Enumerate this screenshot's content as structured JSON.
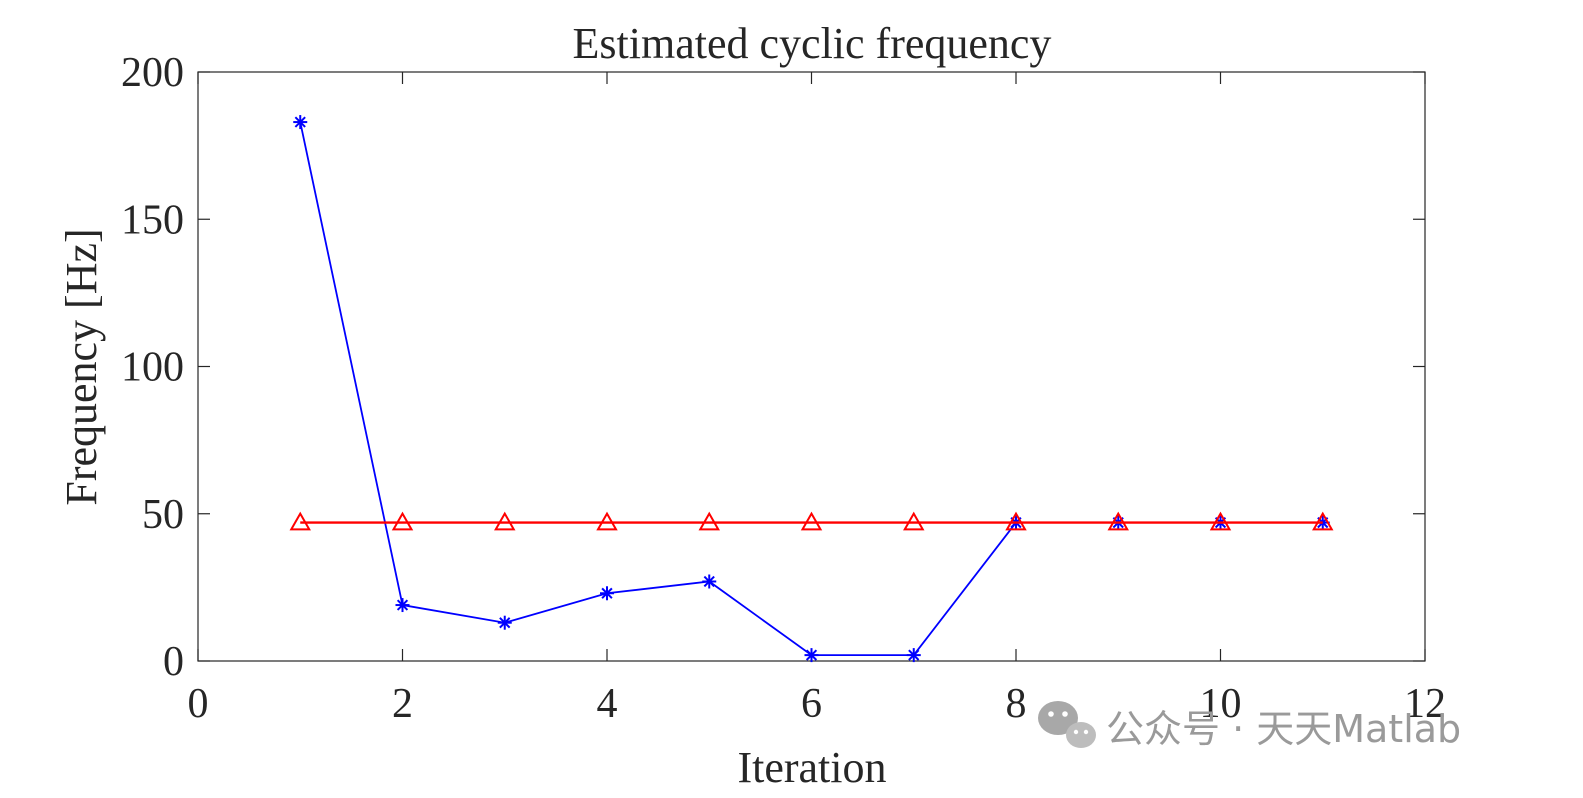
{
  "chart_data": {
    "type": "line",
    "title": "Estimated cyclic frequency",
    "xlabel": "Iteration",
    "ylabel": "Frequency [Hz]",
    "xlim": [
      0,
      12
    ],
    "ylim": [
      0,
      200
    ],
    "xticks": [
      0,
      2,
      4,
      6,
      8,
      10,
      12
    ],
    "yticks": [
      0,
      50,
      100,
      150,
      200
    ],
    "grid": false,
    "legend": "none",
    "series": [
      {
        "marker": "asterisk",
        "color": "#0000ff",
        "x": [
          1,
          2,
          3,
          4,
          5,
          6,
          7,
          8,
          9,
          10,
          11
        ],
        "values": [
          183,
          19,
          13,
          23,
          27,
          2,
          2,
          47,
          47,
          47,
          47
        ]
      },
      {
        "marker": "triangle",
        "color": "#ff0000",
        "x": [
          1,
          2,
          3,
          4,
          5,
          6,
          7,
          8,
          9,
          10,
          11
        ],
        "values": [
          47,
          47,
          47,
          47,
          47,
          47,
          47,
          47,
          47,
          47,
          47
        ]
      }
    ]
  },
  "watermark": {
    "text": "公众号 · 天天Matlab",
    "icon": "wechat-icon"
  }
}
